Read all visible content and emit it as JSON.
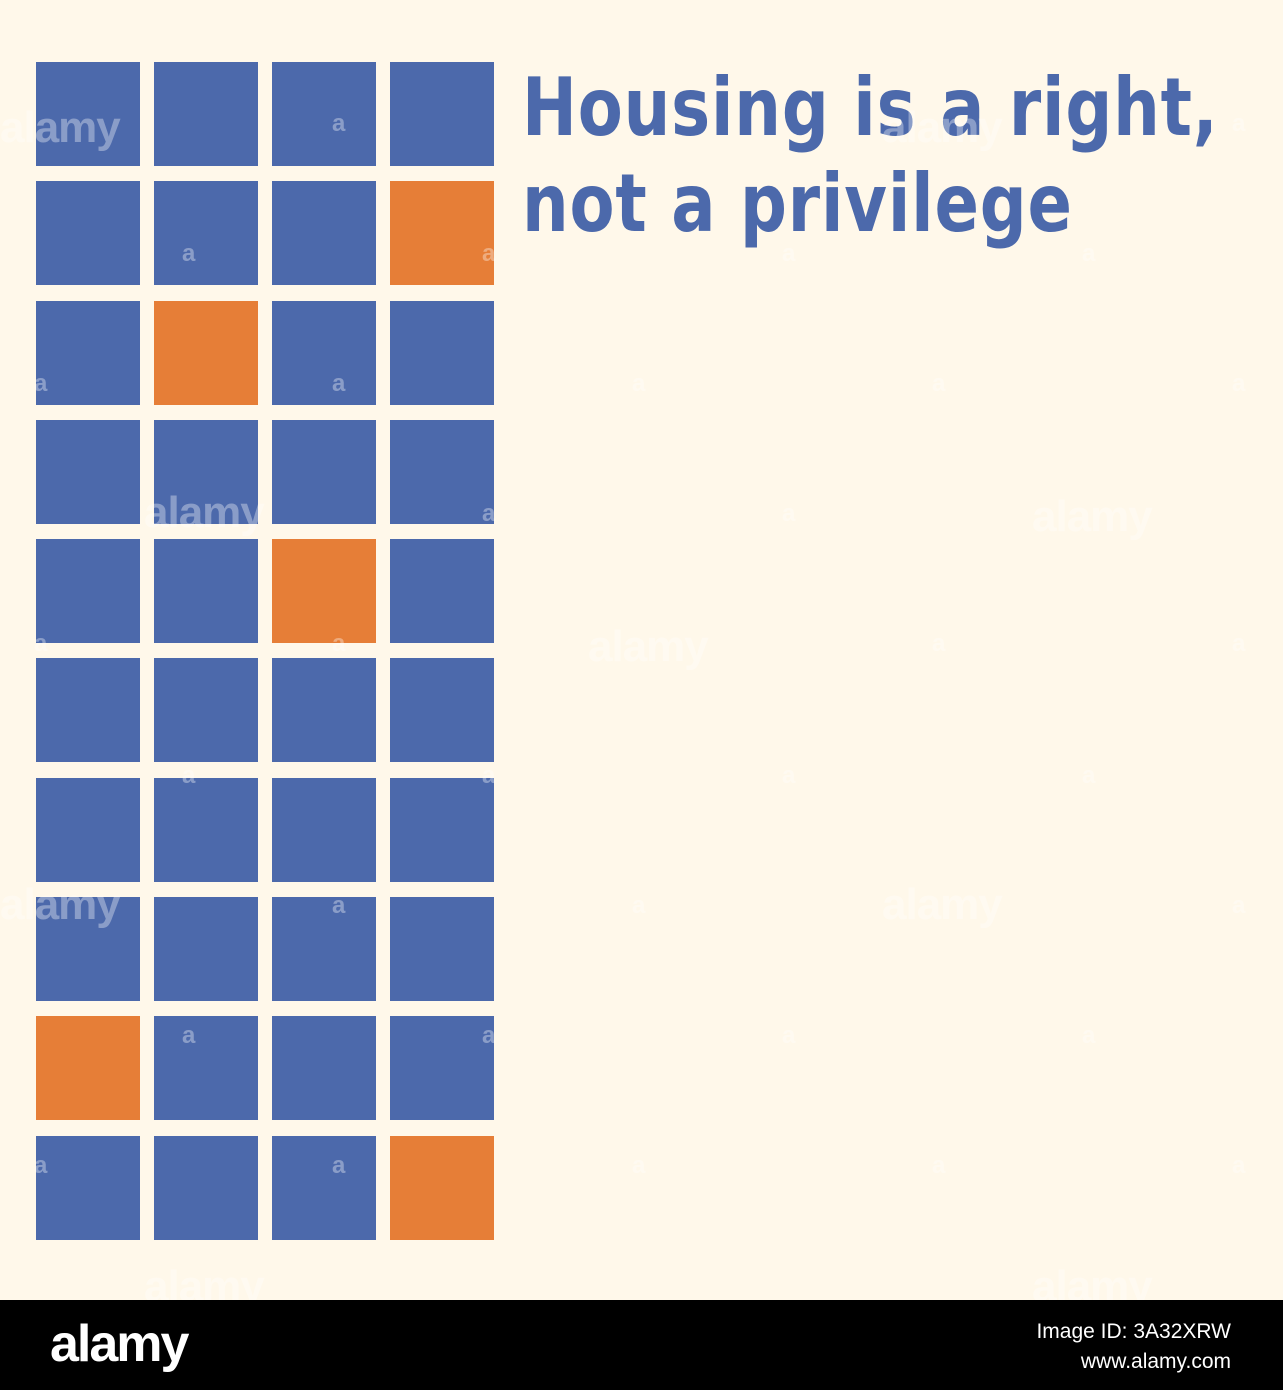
{
  "colors": {
    "background": "#fff8ea",
    "tile_blue": "#4c69ab",
    "tile_orange": "#e67e37",
    "headline": "#4c69ab",
    "footer_background": "#000000"
  },
  "headline": {
    "lines": [
      "Housing is a right,",
      "not a privilege"
    ]
  },
  "grid": {
    "columns": 4,
    "rows": [
      [
        "blue",
        "blue",
        "blue",
        "blue"
      ],
      [
        "blue",
        "blue",
        "blue",
        "orange"
      ],
      [
        "blue",
        "orange",
        "blue",
        "blue"
      ],
      [
        "blue",
        "blue",
        "blue",
        "blue"
      ],
      [
        "blue",
        "blue",
        "orange",
        "blue"
      ],
      [
        "blue",
        "blue",
        "blue",
        "blue"
      ],
      [
        "blue",
        "blue",
        "blue",
        "blue"
      ],
      [
        "blue",
        "blue",
        "blue",
        "blue"
      ],
      [
        "orange",
        "blue",
        "blue",
        "blue"
      ],
      [
        "blue",
        "blue",
        "blue",
        "orange"
      ]
    ]
  },
  "watermark": {
    "word": "alamy",
    "glyph": "a"
  },
  "footer": {
    "logo": "alamy",
    "image_id": "Image ID: 3A32XRW",
    "url": "www.alamy.com"
  }
}
